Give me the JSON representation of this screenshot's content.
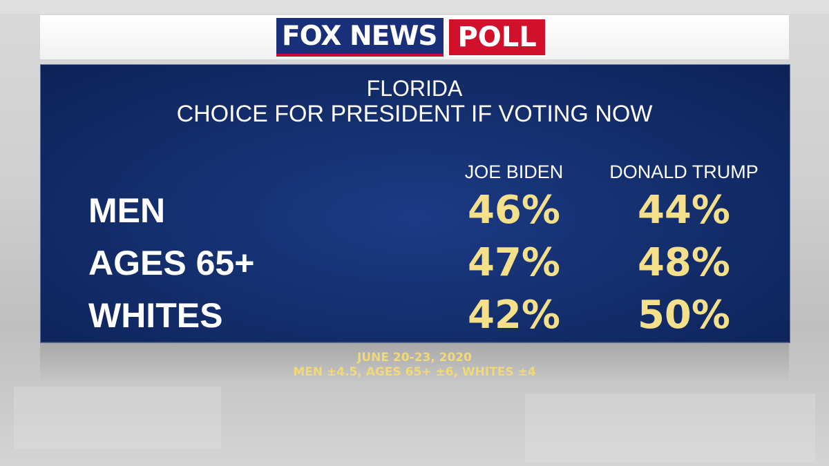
{
  "header": {
    "logo_main": "FOX NEWS",
    "logo_poll": "POLL"
  },
  "chart_data": {
    "type": "table",
    "title": "FLORIDA",
    "subtitle": "CHOICE FOR PRESIDENT IF VOTING NOW",
    "columns": [
      "JOE BIDEN",
      "DONALD TRUMP"
    ],
    "rows": [
      {
        "label": "MEN",
        "values": [
          "46%",
          "44%"
        ]
      },
      {
        "label": "AGES 65+",
        "values": [
          "47%",
          "48%"
        ]
      },
      {
        "label": "WHITES",
        "values": [
          "42%",
          "50%"
        ]
      }
    ]
  },
  "footer": {
    "dates": "JUNE 20-23, 2020",
    "margins": "MEN ±4.5, AGES 65+ ±6, WHITES ±4"
  },
  "colors": {
    "panel": "#15306f",
    "value": "#f4e08a",
    "logo_blue": "#1a2f7a",
    "logo_red": "#d1102c"
  }
}
